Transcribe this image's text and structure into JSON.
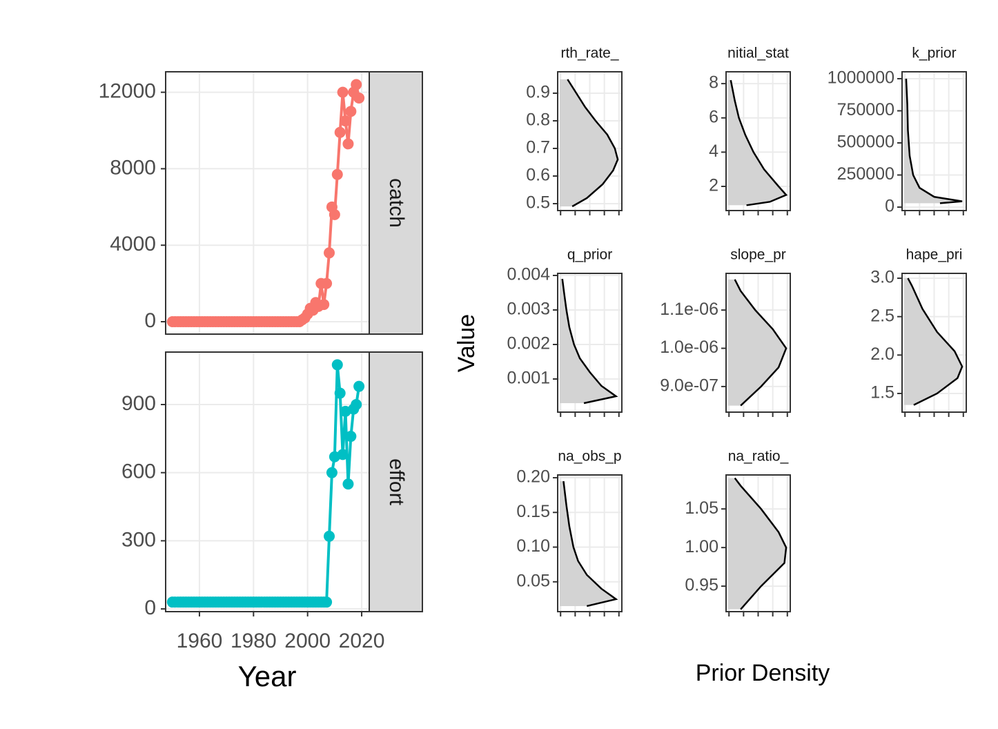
{
  "chart_data": [
    {
      "type": "line",
      "xlabel": "Year",
      "x": [
        1950,
        1951,
        1952,
        1953,
        1954,
        1955,
        1956,
        1957,
        1958,
        1959,
        1960,
        1961,
        1962,
        1963,
        1964,
        1965,
        1966,
        1967,
        1968,
        1969,
        1970,
        1971,
        1972,
        1973,
        1974,
        1975,
        1976,
        1977,
        1978,
        1979,
        1980,
        1981,
        1982,
        1983,
        1984,
        1985,
        1986,
        1987,
        1988,
        1989,
        1990,
        1991,
        1992,
        1993,
        1994,
        1995,
        1996,
        1997,
        1998,
        1999,
        2000,
        2001,
        2002,
        2003,
        2004,
        2005,
        2006,
        2007,
        2008,
        2009,
        2010,
        2011,
        2012,
        2013,
        2014,
        2015,
        2016,
        2017,
        2018,
        2019
      ],
      "xlim": [
        1947.5,
        2022.8
      ],
      "xticks": [
        1960,
        1980,
        2000,
        2020
      ],
      "grid": true,
      "series": [
        {
          "name": "catch",
          "color": "#F8766D",
          "ylim": [
            -650,
            13070
          ],
          "yticks": [
            0,
            4000,
            8000,
            12000
          ],
          "values": [
            0,
            0,
            0,
            0,
            0,
            0,
            0,
            0,
            0,
            0,
            0,
            0,
            0,
            0,
            0,
            0,
            0,
            0,
            0,
            0,
            0,
            0,
            0,
            0,
            0,
            0,
            0,
            0,
            0,
            0,
            0,
            0,
            0,
            0,
            0,
            0,
            0,
            0,
            0,
            0,
            0,
            0,
            0,
            0,
            0,
            0,
            0,
            0,
            100,
            200,
            400,
            700,
            600,
            1000,
            800,
            2000,
            900,
            2000,
            3600,
            6000,
            5600,
            7700,
            9900,
            12000,
            10500,
            9300,
            11000,
            12000,
            12400,
            11700
          ]
        },
        {
          "name": "effort",
          "color": "#00BFC4",
          "ylim": [
            -12,
            1131
          ],
          "yticks": [
            0,
            300,
            600,
            900
          ],
          "values": [
            30,
            30,
            30,
            30,
            30,
            30,
            30,
            30,
            30,
            30,
            30,
            30,
            30,
            30,
            30,
            30,
            30,
            30,
            30,
            30,
            30,
            30,
            30,
            30,
            30,
            30,
            30,
            30,
            30,
            30,
            30,
            30,
            30,
            30,
            30,
            30,
            30,
            30,
            30,
            30,
            30,
            30,
            30,
            30,
            30,
            30,
            30,
            30,
            30,
            30,
            30,
            30,
            30,
            30,
            30,
            30,
            30,
            30,
            320,
            600,
            670,
            1075,
            950,
            680,
            870,
            550,
            760,
            880,
            900,
            980
          ]
        }
      ]
    },
    {
      "type": "density",
      "ylabel": "Value",
      "xlabel": "Prior Density",
      "fill": "#D3D3D3",
      "color": "#000000",
      "xlim": [
        -0.05,
        1.05
      ],
      "xticks": [
        0,
        0.25,
        0.5,
        0.75,
        1
      ],
      "grid": true,
      "panels": [
        {
          "title": "rth_rate_",
          "ylim": [
            0.475,
            0.9775
          ],
          "yticks": [
            0.5,
            0.6,
            0.7,
            0.8,
            0.9
          ],
          "values": [
            0.49,
            0.52,
            0.57,
            0.62,
            0.66,
            0.7,
            0.75,
            0.8,
            0.85,
            0.9,
            0.95
          ],
          "density": [
            0.2,
            0.45,
            0.72,
            0.9,
            0.98,
            0.93,
            0.8,
            0.6,
            0.42,
            0.27,
            0.12
          ]
        },
        {
          "title": "nitial_stat",
          "ylim": [
            0.59,
            8.69
          ],
          "yticks": [
            2,
            4,
            6,
            8
          ],
          "values": [
            0.9,
            1.1,
            1.5,
            2,
            3,
            4,
            5,
            6,
            7,
            8.2
          ],
          "density": [
            0.3,
            0.7,
            0.98,
            0.85,
            0.6,
            0.42,
            0.28,
            0.17,
            0.1,
            0.03
          ]
        },
        {
          "title": "k_prior",
          "ylim": [
            -26882,
            1053763
          ],
          "yticks": [
            0,
            250000,
            500000,
            750000,
            1000000
          ],
          "values": [
            30000,
            45000,
            80000,
            150000,
            250000,
            400000,
            600000,
            800000,
            1000000
          ],
          "density": [
            0.6,
            0.98,
            0.5,
            0.25,
            0.14,
            0.08,
            0.05,
            0.04,
            0.02
          ]
        },
        {
          "title": "q_prior",
          "ylim": [
            4e-05,
            0.00406
          ],
          "yticks": [
            0.001,
            0.002,
            0.003,
            0.004
          ],
          "values": [
            0.0003,
            0.0005,
            0.0008,
            0.0012,
            0.0016,
            0.002,
            0.0025,
            0.003,
            0.0035,
            0.0039
          ],
          "density": [
            0.4,
            0.95,
            0.7,
            0.5,
            0.33,
            0.23,
            0.15,
            0.1,
            0.06,
            0.03
          ]
        },
        {
          "title": "slope_pr",
          "ylim": [
            8.33e-07,
            1.196e-06
          ],
          "yticks": [
            {
              "value": 9e-07,
              "label": "9.0e-07"
            },
            {
              "value": 1e-06,
              "label": "1.0e-06"
            },
            {
              "value": 1.1e-06,
              "label": "1.1e-06"
            }
          ],
          "values": [
            8.5e-07,
            9e-07,
            9.5e-07,
            1e-06,
            1.05e-06,
            1.1e-06,
            1.15e-06,
            1.18e-06
          ],
          "density": [
            0.2,
            0.55,
            0.85,
            0.98,
            0.75,
            0.45,
            0.2,
            0.1
          ]
        },
        {
          "title": "hape_pri",
          "ylim": [
            1.257,
            3.063
          ],
          "yticks": [
            1.5,
            {
              "value": 2,
              "label": "2.0"
            },
            2.5,
            {
              "value": 3,
              "label": "3.0"
            }
          ],
          "values": [
            1.35,
            1.5,
            1.7,
            1.85,
            2.05,
            2.3,
            2.6,
            2.9,
            3.0
          ],
          "density": [
            0.15,
            0.55,
            0.9,
            0.98,
            0.85,
            0.55,
            0.3,
            0.12,
            0.05
          ]
        },
        {
          "title": "na_obs_p",
          "ylim": [
            0.007,
            0.204
          ],
          "yticks": [
            0.05,
            {
              "value": 0.1,
              "label": "0.10"
            },
            0.15,
            {
              "value": 0.2,
              "label": "0.20"
            }
          ],
          "values": [
            0.015,
            0.025,
            0.04,
            0.06,
            0.08,
            0.1,
            0.13,
            0.16,
            0.195
          ],
          "density": [
            0.45,
            0.95,
            0.7,
            0.45,
            0.3,
            0.22,
            0.15,
            0.1,
            0.05
          ]
        },
        {
          "title": "na_ratio_",
          "ylim": [
            0.917,
            1.094
          ],
          "yticks": [
            0.95,
            {
              "value": 1,
              "label": "1.00"
            },
            1.05
          ],
          "values": [
            0.92,
            0.95,
            0.98,
            1.0,
            1.02,
            1.05,
            1.08,
            1.09
          ],
          "density": [
            0.2,
            0.55,
            0.95,
            0.98,
            0.85,
            0.55,
            0.2,
            0.1
          ]
        }
      ]
    }
  ]
}
